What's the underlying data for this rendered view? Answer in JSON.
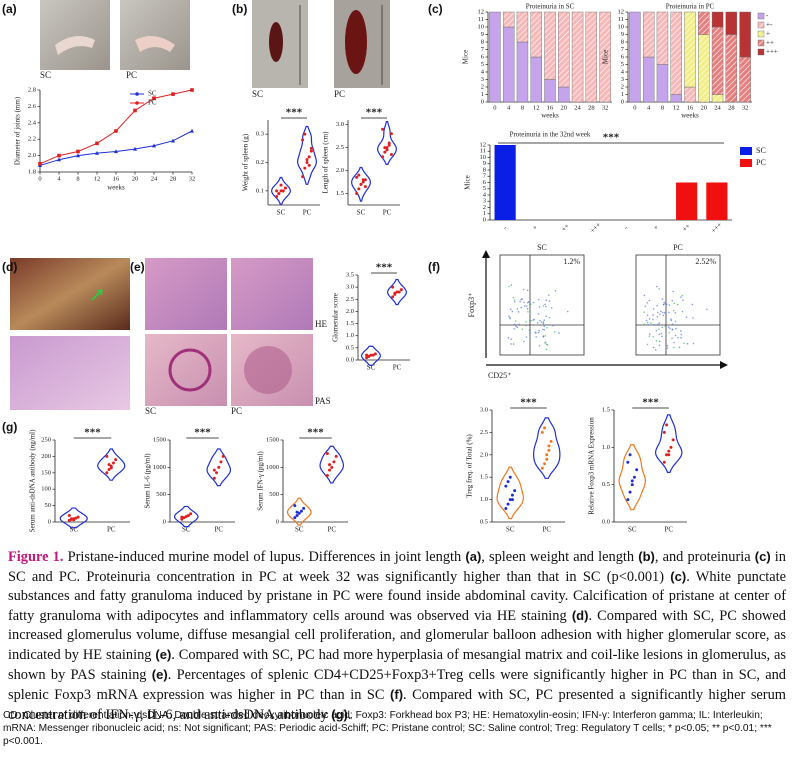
{
  "panels": [
    "(a)",
    "(b)",
    "(c)",
    "(d)",
    "(e)",
    "(f)",
    "(g)"
  ],
  "images": {
    "a": [
      "SC",
      "PC"
    ],
    "b": [
      "SC",
      "PC"
    ],
    "e": [
      "SC",
      "PC",
      "HE",
      "PAS"
    ]
  },
  "flow": {
    "axis_y": "Foxp3⁺",
    "axis_x": "CD25⁺",
    "plots": [
      {
        "title": "SC",
        "percent": "1.2%"
      },
      {
        "title": "PC",
        "percent": "2.52%"
      }
    ]
  },
  "charts": [
    {
      "type": "line",
      "xlabel": "weeks",
      "ylabel": "Diameter of joints (mm)",
      "x": [
        0,
        4,
        8,
        12,
        16,
        20,
        24,
        28,
        32
      ],
      "xlim": [
        0,
        32
      ],
      "xticks": [
        0,
        4,
        8,
        12,
        16,
        20,
        24,
        28,
        32
      ],
      "ylim": [
        1.8,
        2.8
      ],
      "yticks": [
        1.8,
        {
          "value": 2,
          "label": "2.0"
        },
        2.2,
        2.4,
        2.6,
        2.8
      ],
      "series": [
        {
          "name": "SC",
          "color": "#1f2fd6",
          "values": [
            1.88,
            1.95,
            2.0,
            2.03,
            2.05,
            2.08,
            2.12,
            2.18,
            2.3
          ]
        },
        {
          "name": "PC",
          "color": "#e02020",
          "values": [
            1.9,
            2.0,
            2.05,
            2.15,
            2.3,
            2.55,
            2.7,
            2.75,
            2.8
          ]
        }
      ]
    },
    {
      "type": "violin",
      "ylabel": "Weight of spleen (g)",
      "annotation": "***",
      "ylim": [
        0.05,
        0.35
      ],
      "yticks": [
        0.1,
        0.2,
        0.3
      ],
      "groups": [
        {
          "name": "SC",
          "color": "#1f2fd6",
          "dot_color": "#e02020",
          "values": [
            0.08,
            0.09,
            0.1,
            0.1,
            0.11,
            0.1,
            0.09,
            0.12,
            0.1,
            0.11
          ]
        },
        {
          "name": "PC",
          "color": "#1f2fd6",
          "dot_color": "#e02020",
          "values": [
            0.15,
            0.18,
            0.2,
            0.22,
            0.25,
            0.28,
            0.3,
            0.21,
            0.19,
            0.24
          ]
        }
      ]
    },
    {
      "type": "violin",
      "ylabel": "Length of spleen (cm)",
      "annotation": "***",
      "ylim": [
        1.25,
        3.1
      ],
      "yticks": [
        1.5,
        {
          "value": 2,
          "label": "2.0"
        },
        2.5,
        {
          "value": 3,
          "label": "3.0"
        }
      ],
      "groups": [
        {
          "name": "SC",
          "color": "#1f2fd6",
          "dot_color": "#e02020",
          "values": [
            1.5,
            1.6,
            1.7,
            1.8,
            1.8,
            1.85,
            1.9,
            1.7,
            1.75,
            1.65
          ]
        },
        {
          "name": "PC",
          "color": "#1f2fd6",
          "dot_color": "#e02020",
          "values": [
            2.3,
            2.4,
            2.5,
            2.6,
            2.8,
            2.9,
            2.5,
            2.45,
            2.55,
            2.35
          ]
        }
      ]
    },
    {
      "type": "stacked_pair",
      "xlabel": "weeks",
      "ylabel": "Mice",
      "categories": [
        "0",
        "4",
        "8",
        "12",
        "16",
        "20",
        "24",
        "28",
        "32"
      ],
      "ylim": [
        0,
        12
      ],
      "yticks": [
        0,
        1,
        2,
        3,
        4,
        5,
        6,
        7,
        8,
        9,
        10,
        11,
        12
      ],
      "series": [
        {
          "name": "-",
          "color": "#c6a4ec",
          "hatch": false
        },
        {
          "name": "+-",
          "color": "#f6b8b8",
          "hatch": true
        },
        {
          "name": "+",
          "color": "#f2ee86",
          "hatch": true
        },
        {
          "name": "++",
          "color": "#e58080",
          "hatch": true
        },
        {
          "name": "+++",
          "color": "#b83434",
          "hatch": false
        }
      ],
      "subplots": [
        {
          "title": "Proteinuria in SC",
          "values": [
            [
              12,
              10,
              8,
              6,
              3,
              2,
              0,
              0,
              0
            ],
            [
              0,
              2,
              4,
              6,
              9,
              10,
              12,
              12,
              12
            ],
            [
              0,
              0,
              0,
              0,
              0,
              0,
              0,
              0,
              0
            ],
            [
              0,
              0,
              0,
              0,
              0,
              0,
              0,
              0,
              0
            ],
            [
              0,
              0,
              0,
              0,
              0,
              0,
              0,
              0,
              0
            ]
          ]
        },
        {
          "title": "Proteinuria in PC",
          "values": [
            [
              12,
              6,
              5,
              1,
              0,
              0,
              0,
              0,
              0
            ],
            [
              0,
              6,
              7,
              11,
              2,
              0,
              0,
              0,
              0
            ],
            [
              0,
              0,
              0,
              0,
              10,
              9,
              1,
              0,
              0
            ],
            [
              0,
              0,
              0,
              0,
              0,
              3,
              9,
              9,
              6
            ],
            [
              0,
              0,
              0,
              0,
              0,
              0,
              2,
              3,
              6
            ]
          ]
        }
      ]
    },
    {
      "type": "bar",
      "title": "Proteinuria in the 32nd week",
      "annotation": "***",
      "ylabel": "Mice",
      "categories": [
        "-",
        "+",
        "++",
        "+++",
        "-",
        "+",
        "++",
        "+++"
      ],
      "ylim": [
        0,
        12
      ],
      "yticks": [
        0,
        1,
        2,
        3,
        4,
        5,
        6,
        7,
        8,
        9,
        10,
        11,
        12
      ],
      "series": [
        {
          "name": "SC",
          "color": "#0a1ee6",
          "values": [
            12,
            0,
            0,
            0,
            null,
            null,
            null,
            null
          ]
        },
        {
          "name": "PC",
          "color": "#f01010",
          "values": [
            null,
            null,
            null,
            null,
            0,
            0,
            6,
            6
          ]
        }
      ]
    },
    {
      "type": "violin",
      "ylabel": "Glomerular score",
      "annotation": "***",
      "ylim": [
        0,
        3.5
      ],
      "yticks": [
        {
          "value": 0,
          "label": "0.0"
        },
        0.5,
        {
          "value": 1,
          "label": "1.0"
        },
        1.5,
        {
          "value": 2,
          "label": "2.0"
        },
        2.5,
        {
          "value": 3,
          "label": "3.0"
        },
        3.5
      ],
      "groups": [
        {
          "name": "SC",
          "color": "#1f2fd6",
          "dot_color": "#e02020",
          "values": [
            0.1,
            0.15,
            0.2,
            0.2,
            0.25,
            0.2,
            0.15
          ]
        },
        {
          "name": "PC",
          "color": "#1f2fd6",
          "dot_color": "#e02020",
          "values": [
            2.6,
            2.7,
            2.8,
            2.8,
            2.9,
            3.0,
            2.75
          ]
        }
      ]
    },
    {
      "type": "violin",
      "ylabel": "Treg freq. of Total (%)",
      "annotation": "***",
      "ylim": [
        0.5,
        3.0
      ],
      "yticks": [
        0.5,
        {
          "value": 1,
          "label": "1.0"
        },
        1.5,
        {
          "value": 2,
          "label": "2.0"
        },
        2.5,
        {
          "value": 3,
          "label": "3.0"
        }
      ],
      "groups": [
        {
          "name": "SC",
          "color": "#f07820",
          "dot_color": "#1f2fd6",
          "values": [
            0.8,
            0.9,
            1.0,
            1.1,
            1.2,
            1.3,
            1.4,
            1.5,
            1.0
          ]
        },
        {
          "name": "PC",
          "color": "#1f2fd6",
          "dot_color": "#f07820",
          "values": [
            1.7,
            1.8,
            2.0,
            2.1,
            2.3,
            2.5,
            2.6,
            1.9,
            2.2
          ]
        }
      ]
    },
    {
      "type": "violin",
      "ylabel": "Relative Foxp3 mRNA Expression",
      "annotation": "***",
      "ylim": [
        0,
        1.5
      ],
      "yticks": [
        {
          "value": 0,
          "label": "0.0"
        },
        0.5,
        {
          "value": 1,
          "label": "1.0"
        },
        1.5
      ],
      "groups": [
        {
          "name": "SC",
          "color": "#f07820",
          "dot_color": "#1f2fd6",
          "values": [
            0.3,
            0.4,
            0.5,
            0.6,
            0.7,
            0.8,
            0.9,
            0.55
          ]
        },
        {
          "name": "PC",
          "color": "#1f2fd6",
          "dot_color": "#e02020",
          "values": [
            0.8,
            0.9,
            0.95,
            1.0,
            1.1,
            1.2,
            1.3,
            0.9
          ]
        }
      ]
    },
    {
      "type": "violin",
      "ylabel": "Serum anti-dsDNA antibody (ng/ml)",
      "annotation": "***",
      "ylim": [
        0,
        250
      ],
      "yticks": [
        0,
        50,
        100,
        150,
        200,
        250
      ],
      "groups": [
        {
          "name": "SC",
          "color": "#1f2fd6",
          "dot_color": "#e02020",
          "values": [
            5,
            8,
            10,
            12,
            15,
            20,
            10,
            7
          ]
        },
        {
          "name": "PC",
          "color": "#1f2fd6",
          "dot_color": "#e02020",
          "values": [
            150,
            160,
            170,
            180,
            190,
            200,
            175,
            165
          ]
        }
      ]
    },
    {
      "type": "violin",
      "ylabel": "Serum IL-6 (pg/ml)",
      "annotation": "***",
      "ylim": [
        0,
        1500
      ],
      "yticks": [
        0,
        500,
        1000,
        1500
      ],
      "groups": [
        {
          "name": "SC",
          "color": "#1f2fd6",
          "dot_color": "#e02020",
          "values": [
            50,
            80,
            100,
            120,
            150,
            90
          ]
        },
        {
          "name": "PC",
          "color": "#1f2fd6",
          "dot_color": "#e02020",
          "values": [
            800,
            900,
            1000,
            1100,
            1200,
            950
          ]
        }
      ]
    },
    {
      "type": "violin",
      "ylabel": "Serum IFN-γ (pg/ml)",
      "annotation": "***",
      "ylim": [
        0,
        1500
      ],
      "yticks": [
        0,
        500,
        1000,
        1500
      ],
      "groups": [
        {
          "name": "SC",
          "color": "#f07820",
          "dot_color": "#1f2fd6",
          "values": [
            80,
            120,
            160,
            200,
            250,
            300,
            180
          ]
        },
        {
          "name": "PC",
          "color": "#1f2fd6",
          "dot_color": "#e02020",
          "values": [
            850,
            950,
            1000,
            1100,
            1200,
            1250,
            1050
          ]
        }
      ]
    }
  ],
  "caption": {
    "parts": [
      "Figure 1.",
      " Pristane-induced murine model of lupus. Differences in joint length ",
      "(a)",
      ", spleen weight and length ",
      "(b)",
      ", and proteinuria ",
      "(c)",
      " in SC and PC. Proteinuria concentration in PC at week 32 was significantly higher than that in SC (p<0.001) ",
      "(c)",
      ". White punctate substances and fatty granuloma induced by pristane in PC were found inside abdominal cavity. Calcification of pristane at center of fatty granuloma with adipocytes and inflammatory cells around was observed via HE staining ",
      "(d)",
      ". Compared with SC, PC showed increased glomerulus volume, diffuse mesangial cell proliferation, and glomerular balloon adhesion with higher glomerular score, as indicated by HE staining ",
      "(e)",
      ". Compared with SC, PC had more hyperplasia of mesangial matrix and coil-like lesions in glomerulus, as shown by PAS staining ",
      "(e)",
      ". Percentages of splenic CD4+CD25+Foxp3+Treg cells were significantly higher in PC than in SC, and splenic Foxp3 mRNA expression was higher in PC than in SC ",
      "(f)",
      ". Compared with SC, PC presented a significantly higher serum concentration of IFN-γ, IL-6, and anti-dsDNA antibody ",
      "(g)",
      "."
    ],
    "footnote": "CD: Cluster of differentiation; dsDNA: Double-stranded deoxyribonucleic acid; Foxp3: Forkhead box P3; HE: Hematoxylin-eosin; IFN-γ: Interferon gamma; IL: Interleukin; mRNA: Messenger ribonucleic acid; ns: Not significant; PAS: Periodic acid-Schiff; PC: Pristane control; SC: Saline control; Treg: Regulatory T cells; * p<0.05; ** p<0.01; *** p<0.001."
  }
}
